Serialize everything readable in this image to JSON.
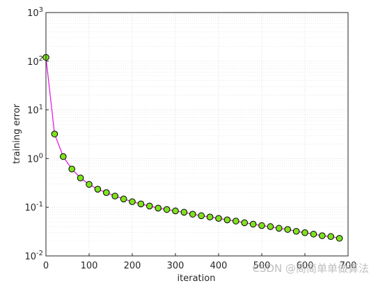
{
  "chart_data": {
    "type": "line",
    "xlabel": "iteration",
    "ylabel": "training error",
    "x": [
      0,
      20,
      40,
      60,
      80,
      100,
      120,
      140,
      160,
      180,
      200,
      220,
      240,
      260,
      280,
      300,
      320,
      340,
      360,
      380,
      400,
      420,
      440,
      460,
      480,
      500,
      520,
      540,
      560,
      580,
      600,
      620,
      640,
      660,
      680
    ],
    "series": [
      {
        "name": "training error",
        "color": "#e41ee4",
        "marker_color": "#7ee21e",
        "values": [
          120,
          3.2,
          1.1,
          0.61,
          0.4,
          0.295,
          0.235,
          0.2,
          0.17,
          0.148,
          0.13,
          0.117,
          0.106,
          0.096,
          0.09,
          0.084,
          0.079,
          0.072,
          0.067,
          0.063,
          0.059,
          0.055,
          0.052,
          0.048,
          0.045,
          0.042,
          0.04,
          0.037,
          0.035,
          0.032,
          0.03,
          0.028,
          0.026,
          0.025,
          0.023
        ]
      }
    ],
    "xlim": [
      0,
      700
    ],
    "xticks": [
      0,
      100,
      200,
      300,
      400,
      500,
      600,
      700
    ],
    "ylim": [
      0.01,
      1000
    ],
    "ylog": true,
    "yticks": [
      {
        "value": 0.01,
        "label": "10",
        "exponent": "-2"
      },
      {
        "value": 0.1,
        "label": "10",
        "exponent": "-1"
      },
      {
        "value": 1,
        "label": "10",
        "exponent": "0"
      },
      {
        "value": 10,
        "label": "10",
        "exponent": "1"
      },
      {
        "value": 100,
        "label": "10",
        "exponent": "2"
      },
      {
        "value": 1000,
        "label": "10",
        "exponent": "3"
      }
    ],
    "grid": true,
    "minor_grid": true,
    "watermark": "CSDN @简简单单做算法"
  }
}
